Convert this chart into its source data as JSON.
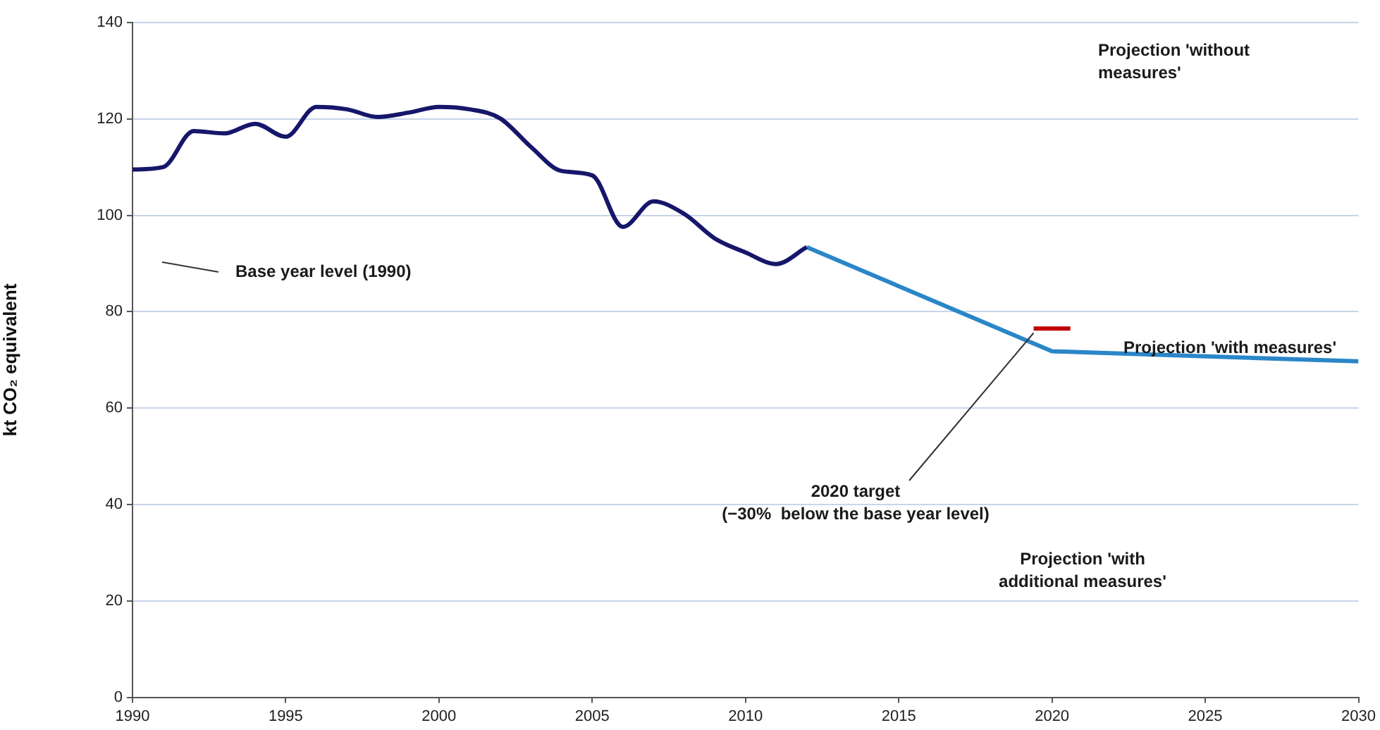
{
  "chart_data": {
    "type": "line",
    "ylabel": "kt CO₂ equivalent",
    "xlim": [
      1990,
      2030
    ],
    "xticks": [
      1990,
      1995,
      2000,
      2005,
      2010,
      2015,
      2020,
      2025,
      2030
    ],
    "ylim": [
      0,
      140
    ],
    "yticks": [
      0,
      20,
      40,
      60,
      80,
      100,
      120,
      140
    ],
    "grid": "y",
    "legend": false,
    "marker": "none",
    "series": [
      {
        "color": "#16166b",
        "x": [
          1990,
          1991,
          1992,
          1993,
          1994,
          1995,
          1996,
          1997,
          1998,
          1999,
          2000,
          2001,
          2002,
          2003,
          2004,
          2005,
          2006,
          2007,
          2008,
          2009,
          2010,
          2011,
          2012
        ],
        "values": [
          109.5,
          110,
          117.5,
          117,
          119,
          116.3,
          122.5,
          122,
          120.4,
          121.3,
          122.5,
          122,
          120.1,
          114.2,
          109.2,
          108.3,
          97.6,
          102.9,
          100.3,
          95.2,
          92.3,
          89.9,
          93.4
        ]
      },
      {
        "color": "#2a86c8",
        "x": [
          2012,
          2020,
          2030
        ],
        "values": [
          93.4,
          71.8,
          69.7
        ]
      },
      {
        "color": "#c00000",
        "x": [
          2019.4,
          2020.6
        ],
        "values": [
          76.5,
          76.5
        ]
      }
    ],
    "annotations": [
      "Projection 'without measures'",
      "Base year level (1990)",
      "Projection 'with measures'",
      {
        "text": "2020 target (−30%  below the base year level)",
        "x": 2019.4,
        "y": 75.6
      },
      "Projection 'with additional measures'"
    ]
  }
}
